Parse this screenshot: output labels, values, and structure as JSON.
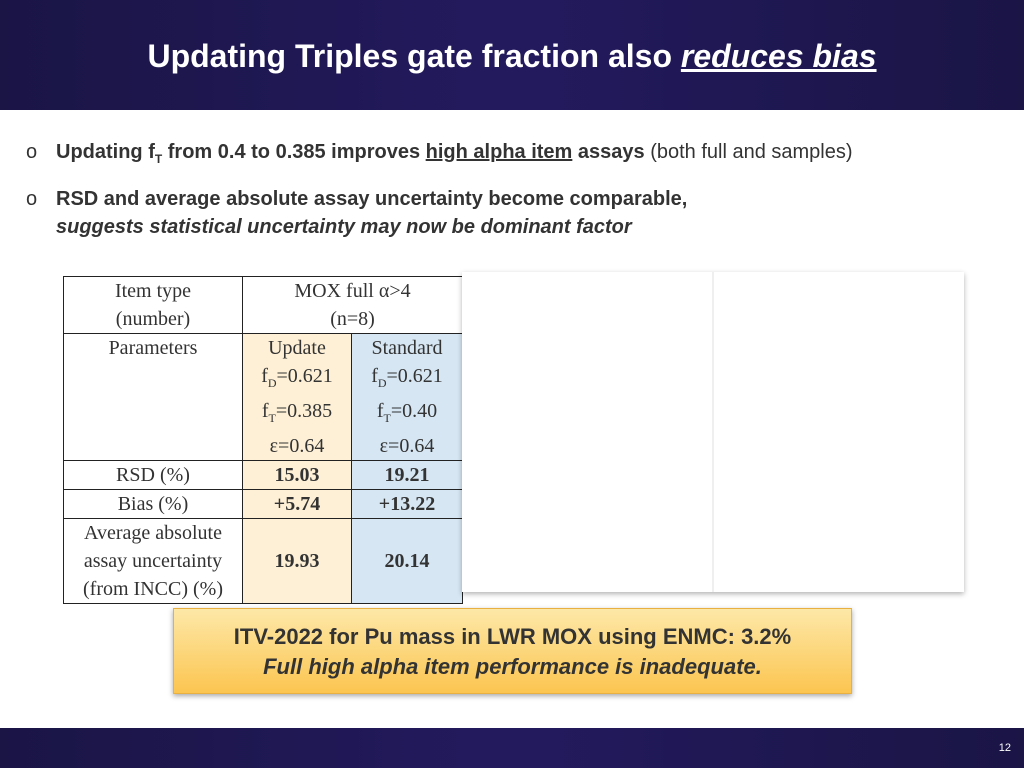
{
  "header": {
    "title_main": "Updating Triples gate fraction also ",
    "title_em": "reduces bias"
  },
  "bullets": [
    {
      "mark": "o",
      "part1": "Updating f",
      "sub": "T",
      "part2": " from 0.4 to 0.385 improves ",
      "underlined": "high alpha item",
      "part3": " assays",
      "normal": " (both full and samples)"
    },
    {
      "mark": "o",
      "line1": "RSD and average absolute assay uncertainty become comparable,",
      "line2": "suggests statistical uncertainty may now be dominant factor"
    }
  ],
  "table": {
    "item_type": [
      "Item type",
      "(number)"
    ],
    "group_header": [
      "MOX full α>4",
      "(n=8)"
    ],
    "parameters_label": "Parameters",
    "update": {
      "label": "Update",
      "fd_prefix": "f",
      "fd_sub": "D",
      "fd_val": "=0.621",
      "ft_prefix": "f",
      "ft_sub": "T",
      "ft_val": "=0.385",
      "eps": "ε=0.64"
    },
    "standard": {
      "label": "Standard",
      "fd_prefix": "f",
      "fd_sub": "D",
      "fd_val": "=0.621",
      "ft_prefix": "f",
      "ft_sub": "T",
      "ft_val": "=0.40",
      "eps": "ε=0.64"
    },
    "rows": [
      {
        "label": "RSD (%)",
        "update": "15.03",
        "standard": "19.21"
      },
      {
        "label": "Bias (%)",
        "update": "+5.74",
        "standard": "+13.22"
      }
    ],
    "avg_label": [
      "Average absolute",
      "assay uncertainty",
      "(from INCC) (%)"
    ],
    "avg_update": "19.93",
    "avg_standard": "20.14"
  },
  "callout": {
    "line1": "ITV-2022 for Pu mass in LWR MOX using ENMC: 3.2%",
    "line2": "Full high alpha item performance is inadequate."
  },
  "footer": {
    "page_number": "12"
  }
}
